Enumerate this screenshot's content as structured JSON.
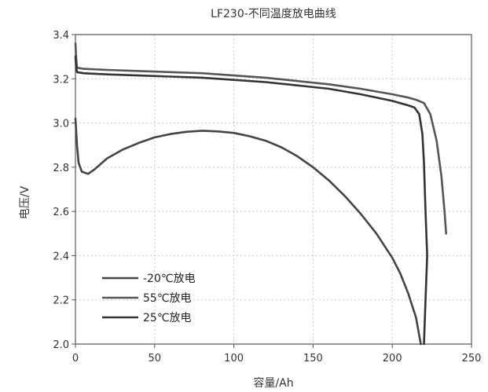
{
  "chart_data": {
    "type": "line",
    "title": "LF230-不同温度放电曲线",
    "xlabel": "容量/Ah",
    "ylabel": "电压/V",
    "xlim": [
      0,
      250
    ],
    "ylim": [
      2.0,
      3.4
    ],
    "xticks": [
      "0",
      "50",
      "100",
      "150",
      "200",
      "250"
    ],
    "yticks": [
      "2.0",
      "2.2",
      "2.4",
      "2.6",
      "2.8",
      "3.0",
      "3.2",
      "3.4"
    ],
    "grid": true,
    "legend_position": "bottom-left",
    "series": [
      {
        "name": "-20℃放电",
        "color": "#444444",
        "points": [
          [
            0,
            3.02
          ],
          [
            1,
            2.9
          ],
          [
            2,
            2.82
          ],
          [
            4,
            2.78
          ],
          [
            8,
            2.77
          ],
          [
            12,
            2.79
          ],
          [
            20,
            2.84
          ],
          [
            30,
            2.88
          ],
          [
            40,
            2.91
          ],
          [
            50,
            2.935
          ],
          [
            60,
            2.95
          ],
          [
            70,
            2.96
          ],
          [
            80,
            2.965
          ],
          [
            90,
            2.962
          ],
          [
            100,
            2.955
          ],
          [
            110,
            2.94
          ],
          [
            120,
            2.92
          ],
          [
            130,
            2.89
          ],
          [
            140,
            2.85
          ],
          [
            150,
            2.8
          ],
          [
            160,
            2.74
          ],
          [
            170,
            2.67
          ],
          [
            180,
            2.59
          ],
          [
            190,
            2.5
          ],
          [
            200,
            2.39
          ],
          [
            205,
            2.32
          ],
          [
            210,
            2.23
          ],
          [
            215,
            2.12
          ],
          [
            218,
            2.0
          ]
        ]
      },
      {
        "name": "55℃放电",
        "color": "#555555",
        "points": [
          [
            0,
            3.36
          ],
          [
            0.5,
            3.29
          ],
          [
            1,
            3.25
          ],
          [
            5,
            3.245
          ],
          [
            20,
            3.24
          ],
          [
            40,
            3.235
          ],
          [
            60,
            3.23
          ],
          [
            80,
            3.225
          ],
          [
            100,
            3.215
          ],
          [
            120,
            3.205
          ],
          [
            140,
            3.19
          ],
          [
            160,
            3.175
          ],
          [
            180,
            3.155
          ],
          [
            200,
            3.13
          ],
          [
            210,
            3.115
          ],
          [
            215,
            3.105
          ],
          [
            220,
            3.09
          ],
          [
            224,
            3.04
          ],
          [
            228,
            2.92
          ],
          [
            231,
            2.76
          ],
          [
            233,
            2.6
          ],
          [
            234,
            2.5
          ]
        ]
      },
      {
        "name": "25℃放电",
        "color": "#333333",
        "points": [
          [
            0,
            3.3
          ],
          [
            0.5,
            3.25
          ],
          [
            1,
            3.23
          ],
          [
            5,
            3.225
          ],
          [
            20,
            3.22
          ],
          [
            40,
            3.215
          ],
          [
            60,
            3.21
          ],
          [
            80,
            3.205
          ],
          [
            100,
            3.195
          ],
          [
            120,
            3.185
          ],
          [
            140,
            3.17
          ],
          [
            160,
            3.155
          ],
          [
            180,
            3.13
          ],
          [
            200,
            3.1
          ],
          [
            210,
            3.08
          ],
          [
            214,
            3.07
          ],
          [
            217,
            3.04
          ],
          [
            219,
            2.95
          ],
          [
            220,
            2.82
          ],
          [
            221,
            2.6
          ],
          [
            222,
            2.4
          ],
          [
            221,
            2.2
          ],
          [
            220,
            2.0
          ]
        ]
      }
    ]
  }
}
